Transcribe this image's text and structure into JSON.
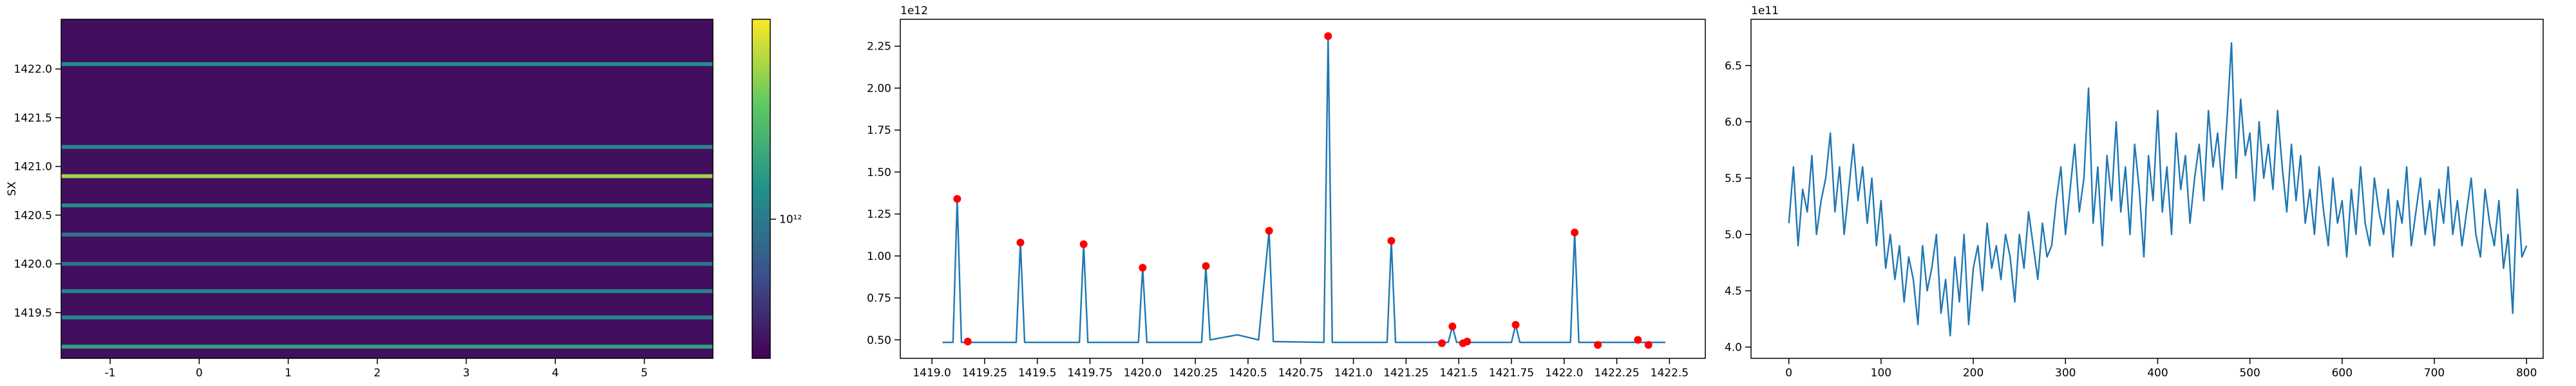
{
  "chart_data": [
    {
      "type": "heatmap",
      "y_label": "SX",
      "xlim": [
        -1.55,
        5.77
      ],
      "xticks": [
        -1,
        0,
        1,
        2,
        3,
        4,
        5
      ],
      "ylim": [
        1419.03,
        1422.51
      ],
      "yticks": [
        1419.5,
        {
          "value": 1420.0,
          "label": "1420.0"
        },
        1420.5,
        {
          "value": 1421.0,
          "label": "1421.0"
        },
        1421.5,
        {
          "value": 1422.0,
          "label": "1422.0"
        }
      ],
      "background": 500000000000.0,
      "y": [
        1419.15,
        1419.45,
        1419.72,
        1420.0,
        1420.3,
        1420.6,
        1420.9,
        1421.2,
        1422.05
      ],
      "values": [
        1340000000000.0,
        1080000000000.0,
        1070000000000.0,
        930000000000.0,
        940000000000.0,
        1150000000000.0,
        2310000000000.0,
        1090000000000.0,
        1140000000000.0
      ],
      "clim": [
        460000000000.0,
        3050000000000.0
      ],
      "color_scale": "log",
      "colormap": "viridis",
      "cticks": [
        {
          "value": 1000000000000.0,
          "label": "10¹²"
        }
      ]
    },
    {
      "type": "line",
      "offset_text": "1e12",
      "xlim": [
        1418.85,
        1422.67
      ],
      "xticks": [
        {
          "value": 1419.0,
          "label": "1419.0"
        },
        1419.25,
        1419.5,
        1419.75,
        {
          "value": 1420.0,
          "label": "1420.0"
        },
        1420.25,
        1420.5,
        1420.75,
        {
          "value": 1421.0,
          "label": "1421.0"
        },
        1421.25,
        1421.5,
        1421.75,
        {
          "value": 1422.0,
          "label": "1422.0"
        },
        1422.25,
        1422.5
      ],
      "ylim": [
        390000000000.0,
        2410000000000.0
      ],
      "yticks": [
        {
          "value": 500000000000.0,
          "label": "0.50"
        },
        {
          "value": 750000000000.0,
          "label": "0.75"
        },
        {
          "value": 1000000000000.0,
          "label": "1.00"
        },
        {
          "value": 1250000000000.0,
          "label": "1.25"
        },
        {
          "value": 1500000000000.0,
          "label": "1.50"
        },
        {
          "value": 1750000000000.0,
          "label": "1.75"
        },
        {
          "value": 2000000000000.0,
          "label": "2.00"
        },
        {
          "value": 2250000000000.0,
          "label": "2.25"
        }
      ],
      "series": [
        {
          "color": "#1f77b4",
          "x": [
            1419.05,
            1419.1,
            1419.12,
            1419.14,
            1419.4,
            1419.42,
            1419.44,
            1419.7,
            1419.72,
            1419.74,
            1419.98,
            1420.0,
            1420.02,
            1420.28,
            1420.3,
            1420.32,
            1420.45,
            1420.55,
            1420.6,
            1420.62,
            1420.86,
            1420.88,
            1420.9,
            1421.16,
            1421.18,
            1421.2,
            1421.45,
            1421.47,
            1421.49,
            1421.75,
            1421.77,
            1421.79,
            1422.03,
            1422.05,
            1422.07,
            1422.48
          ],
          "values": [
            485000000000.0,
            485000000000.0,
            1340000000000.0,
            485000000000.0,
            485000000000.0,
            1080000000000.0,
            485000000000.0,
            485000000000.0,
            1070000000000.0,
            485000000000.0,
            485000000000.0,
            930000000000.0,
            485000000000.0,
            485000000000.0,
            940000000000.0,
            500000000000.0,
            530000000000.0,
            500000000000.0,
            1150000000000.0,
            490000000000.0,
            485000000000.0,
            2310000000000.0,
            485000000000.0,
            485000000000.0,
            1090000000000.0,
            485000000000.0,
            485000000000.0,
            580000000000.0,
            485000000000.0,
            485000000000.0,
            590000000000.0,
            485000000000.0,
            485000000000.0,
            1140000000000.0,
            485000000000.0,
            485000000000.0
          ]
        },
        {
          "color": "#ff0000",
          "marker": "o",
          "x": [
            1419.12,
            1419.17,
            1419.42,
            1419.72,
            1420.0,
            1420.3,
            1420.6,
            1420.88,
            1421.18,
            1421.42,
            1421.47,
            1421.52,
            1421.54,
            1421.77,
            1422.05,
            1422.16,
            1422.35,
            1422.4
          ],
          "values": [
            1340000000000.0,
            490000000000.0,
            1080000000000.0,
            1070000000000.0,
            930000000000.0,
            940000000000.0,
            1150000000000.0,
            2310000000000.0,
            1090000000000.0,
            480000000000.0,
            580000000000.0,
            480000000000.0,
            490000000000.0,
            590000000000.0,
            1140000000000.0,
            470000000000.0,
            500000000000.0,
            470000000000.0
          ]
        }
      ]
    },
    {
      "type": "line",
      "offset_text": "1e11",
      "xlim": [
        -41,
        818
      ],
      "xticks": [
        0,
        100,
        200,
        300,
        400,
        500,
        600,
        700,
        800
      ],
      "ylim": [
        390000000000.0,
        691000000000.0
      ],
      "yticks": [
        {
          "value": 400000000000.0,
          "label": "4.0"
        },
        {
          "value": 450000000000.0,
          "label": "4.5"
        },
        {
          "value": 500000000000.0,
          "label": "5.0"
        },
        {
          "value": 550000000000.0,
          "label": "5.5"
        },
        {
          "value": 600000000000.0,
          "label": "6.0"
        },
        {
          "value": 650000000000.0,
          "label": "6.5"
        }
      ],
      "series": [
        {
          "color": "#1f77b4",
          "x": [
            0,
            5,
            10,
            15,
            20,
            25,
            30,
            35,
            40,
            45,
            50,
            55,
            60,
            65,
            70,
            75,
            80,
            85,
            90,
            95,
            100,
            105,
            110,
            115,
            120,
            125,
            130,
            135,
            140,
            145,
            150,
            155,
            160,
            165,
            170,
            175,
            180,
            185,
            190,
            195,
            200,
            205,
            210,
            215,
            220,
            225,
            230,
            235,
            240,
            245,
            250,
            255,
            260,
            265,
            270,
            275,
            280,
            285,
            290,
            295,
            300,
            305,
            310,
            315,
            320,
            325,
            330,
            335,
            340,
            345,
            350,
            355,
            360,
            365,
            370,
            375,
            380,
            385,
            390,
            395,
            400,
            405,
            410,
            415,
            420,
            425,
            430,
            435,
            440,
            445,
            450,
            455,
            460,
            465,
            470,
            475,
            480,
            485,
            490,
            495,
            500,
            505,
            510,
            515,
            520,
            525,
            530,
            535,
            540,
            545,
            550,
            555,
            560,
            565,
            570,
            575,
            580,
            585,
            590,
            595,
            600,
            605,
            610,
            615,
            620,
            625,
            630,
            635,
            640,
            645,
            650,
            655,
            660,
            665,
            670,
            675,
            680,
            685,
            690,
            695,
            700,
            705,
            710,
            715,
            720,
            725,
            730,
            735,
            740,
            745,
            750,
            755,
            760,
            765,
            770,
            775,
            780,
            785,
            790,
            795,
            800
          ],
          "values": [
            510000000000.0,
            560000000000.0,
            490000000000.0,
            540000000000.0,
            520000000000.0,
            570000000000.0,
            500000000000.0,
            530000000000.0,
            550000000000.0,
            590000000000.0,
            520000000000.0,
            560000000000.0,
            500000000000.0,
            540000000000.0,
            580000000000.0,
            530000000000.0,
            560000000000.0,
            510000000000.0,
            550000000000.0,
            490000000000.0,
            530000000000.0,
            470000000000.0,
            500000000000.0,
            460000000000.0,
            490000000000.0,
            440000000000.0,
            480000000000.0,
            460000000000.0,
            420000000000.0,
            490000000000.0,
            450000000000.0,
            470000000000.0,
            500000000000.0,
            430000000000.0,
            460000000000.0,
            410000000000.0,
            480000000000.0,
            440000000000.0,
            500000000000.0,
            420000000000.0,
            470000000000.0,
            490000000000.0,
            450000000000.0,
            510000000000.0,
            470000000000.0,
            490000000000.0,
            460000000000.0,
            500000000000.0,
            480000000000.0,
            440000000000.0,
            500000000000.0,
            470000000000.0,
            520000000000.0,
            490000000000.0,
            460000000000.0,
            510000000000.0,
            480000000000.0,
            490000000000.0,
            530000000000.0,
            560000000000.0,
            500000000000.0,
            540000000000.0,
            580000000000.0,
            520000000000.0,
            550000000000.0,
            630000000000.0,
            510000000000.0,
            560000000000.0,
            490000000000.0,
            570000000000.0,
            530000000000.0,
            600000000000.0,
            520000000000.0,
            560000000000.0,
            500000000000.0,
            580000000000.0,
            540000000000.0,
            480000000000.0,
            570000000000.0,
            530000000000.0,
            610000000000.0,
            520000000000.0,
            560000000000.0,
            500000000000.0,
            590000000000.0,
            540000000000.0,
            570000000000.0,
            510000000000.0,
            550000000000.0,
            580000000000.0,
            530000000000.0,
            610000000000.0,
            560000000000.0,
            590000000000.0,
            540000000000.0,
            600000000000.0,
            670000000000.0,
            550000000000.0,
            620000000000.0,
            570000000000.0,
            590000000000.0,
            530000000000.0,
            600000000000.0,
            550000000000.0,
            580000000000.0,
            540000000000.0,
            610000000000.0,
            560000000000.0,
            520000000000.0,
            580000000000.0,
            530000000000.0,
            570000000000.0,
            510000000000.0,
            540000000000.0,
            500000000000.0,
            560000000000.0,
            520000000000.0,
            490000000000.0,
            550000000000.0,
            510000000000.0,
            530000000000.0,
            480000000000.0,
            540000000000.0,
            500000000000.0,
            560000000000.0,
            510000000000.0,
            490000000000.0,
            550000000000.0,
            520000000000.0,
            500000000000.0,
            540000000000.0,
            480000000000.0,
            530000000000.0,
            510000000000.0,
            560000000000.0,
            490000000000.0,
            520000000000.0,
            550000000000.0,
            500000000000.0,
            530000000000.0,
            490000000000.0,
            540000000000.0,
            510000000000.0,
            560000000000.0,
            500000000000.0,
            530000000000.0,
            490000000000.0,
            520000000000.0,
            550000000000.0,
            500000000000.0,
            480000000000.0,
            540000000000.0,
            510000000000.0,
            490000000000.0,
            530000000000.0,
            470000000000.0,
            500000000000.0,
            430000000000.0,
            540000000000.0,
            480000000000.0,
            490000000000.0
          ]
        }
      ]
    }
  ]
}
